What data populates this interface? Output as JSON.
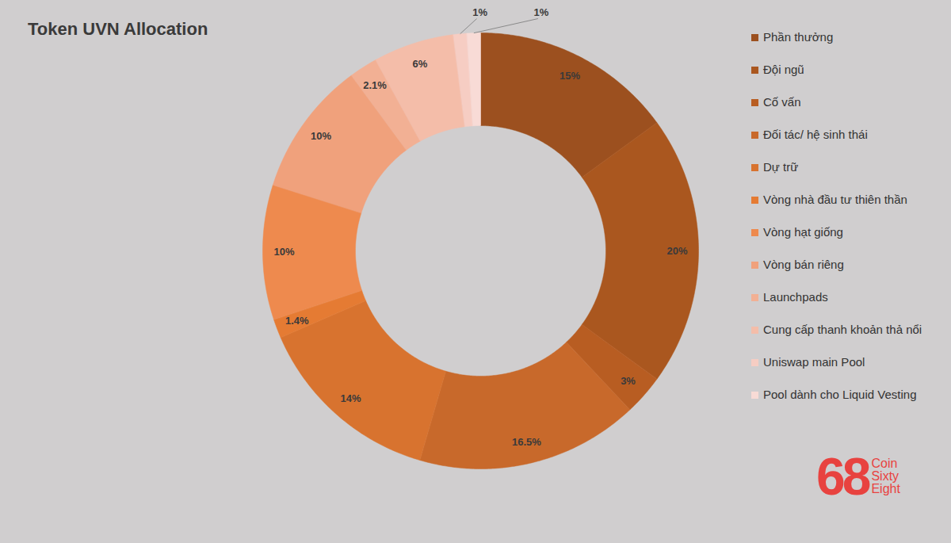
{
  "chart_data": {
    "type": "pie",
    "title": "Token UVN Allocation",
    "categories": [
      "Phần thưởng",
      "Đội ngũ",
      "Cố vấn",
      "Đối tác/ hệ sinh thái",
      "Dự trữ",
      "Vòng nhà đầu tư thiên thần",
      "Vòng hạt giống",
      "Vòng bán riêng",
      "Launchpads",
      "Cung cấp thanh khoản thả nổi",
      "Uniswap main Pool",
      "Pool dành cho Liquid Vesting"
    ],
    "values": [
      15,
      20,
      3,
      16.5,
      14,
      1.4,
      10,
      10,
      2.1,
      6,
      1,
      1
    ],
    "value_labels": [
      "15%",
      "20%",
      "3%",
      "16.5%",
      "14%",
      "1.4%",
      "10%",
      "10%",
      "2.1%",
      "6%",
      "1%",
      "1%"
    ],
    "colors": [
      "#9c501f",
      "#aa571f",
      "#b85d22",
      "#c8692b",
      "#d8732f",
      "#e57b33",
      "#ee8a4e",
      "#f0a17c",
      "#f2b094",
      "#f4bda9",
      "#f6cdc3",
      "#f8dbd6"
    ],
    "data_labels": true,
    "legend": "right",
    "annotations": [
      "68",
      "Coin",
      "Sixty",
      "Eight"
    ]
  }
}
